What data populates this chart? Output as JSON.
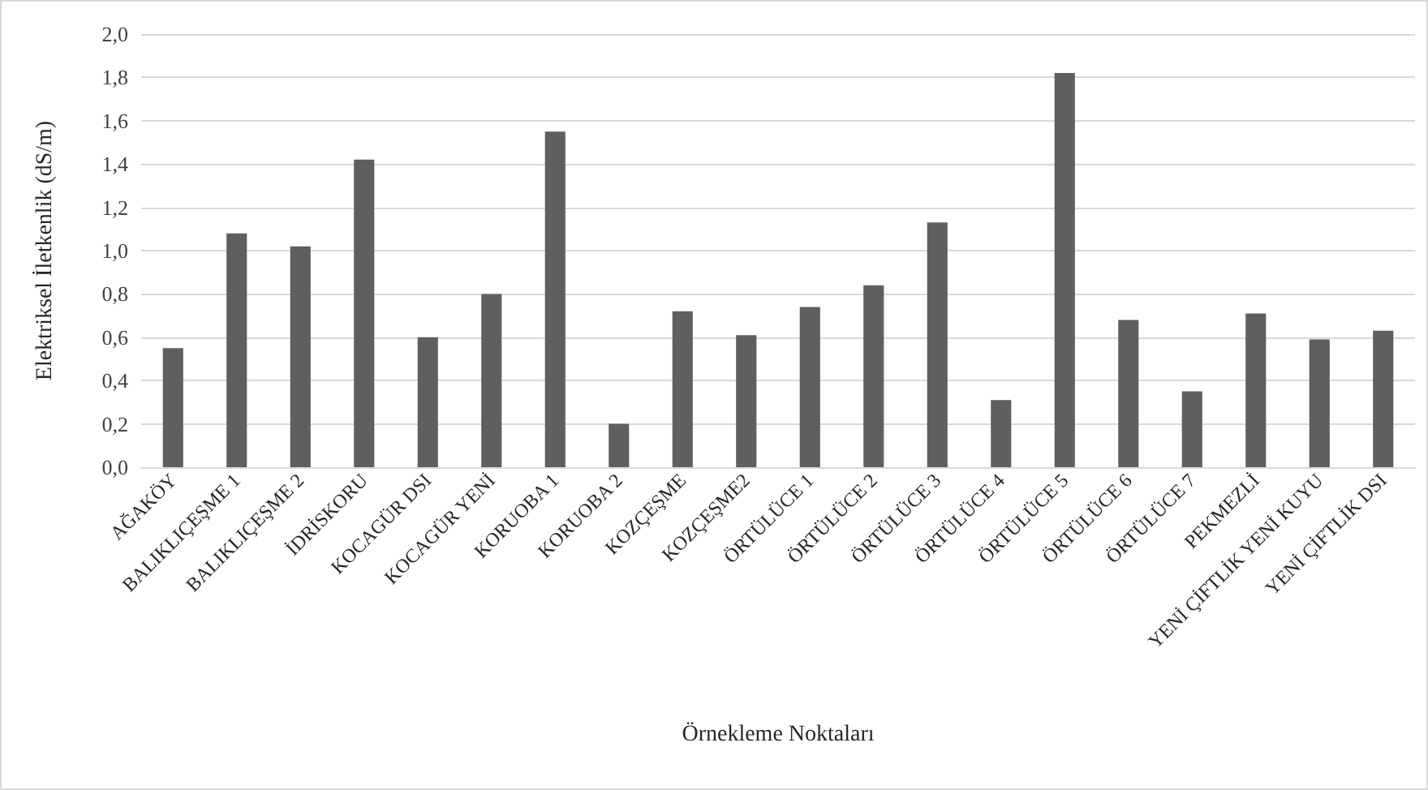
{
  "chart_data": {
    "type": "bar",
    "xlabel": "Örnekleme Noktaları",
    "ylabel": "Elektriksel İletkenlik (dS/m)",
    "categories": [
      "AĞAKÖY",
      "BALIKLIÇEŞME 1",
      "BALIKLIÇEŞME 2",
      "İDRİSKORU",
      "KOCAGÜR DSI",
      "KOCAGÜR YENİ",
      "KORUOBA 1",
      "KORUOBA 2",
      "KOZÇEŞME",
      "KOZÇEŞME2",
      "ÖRTÜLÜCE 1",
      "ÖRTÜLÜCE 2",
      "ÖRTÜLÜCE 3",
      "ÖRTÜLÜCE 4",
      "ÖRTÜLÜCE 5",
      "ÖRTÜLÜCE 6",
      "ÖRTÜLÜCE 7",
      "PEKMEZLİ",
      "YENİ ÇİFTLİK YENİ KUYU",
      "YENİ ÇİFTLİK DSI"
    ],
    "values": [
      0.55,
      1.08,
      1.02,
      1.42,
      0.6,
      0.8,
      1.55,
      0.2,
      0.72,
      0.61,
      0.74,
      0.84,
      1.13,
      0.31,
      1.82,
      0.68,
      0.35,
      0.71,
      0.59,
      0.63
    ],
    "color": "#5f5f5f",
    "ylim": [
      0,
      2
    ],
    "yticks": [
      {
        "value": 0,
        "label": "0,0"
      },
      {
        "value": 0.2,
        "label": "0,2"
      },
      {
        "value": 0.4,
        "label": "0,4"
      },
      {
        "value": 0.6,
        "label": "0,6"
      },
      {
        "value": 0.8,
        "label": "0,8"
      },
      {
        "value": 1,
        "label": "1,0"
      },
      {
        "value": 1.2,
        "label": "1,2"
      },
      {
        "value": 1.4,
        "label": "1,4"
      },
      {
        "value": 1.6,
        "label": "1,6"
      },
      {
        "value": 1.8,
        "label": "1,8"
      },
      {
        "value": 2,
        "label": "2,0"
      }
    ],
    "grid": true
  }
}
